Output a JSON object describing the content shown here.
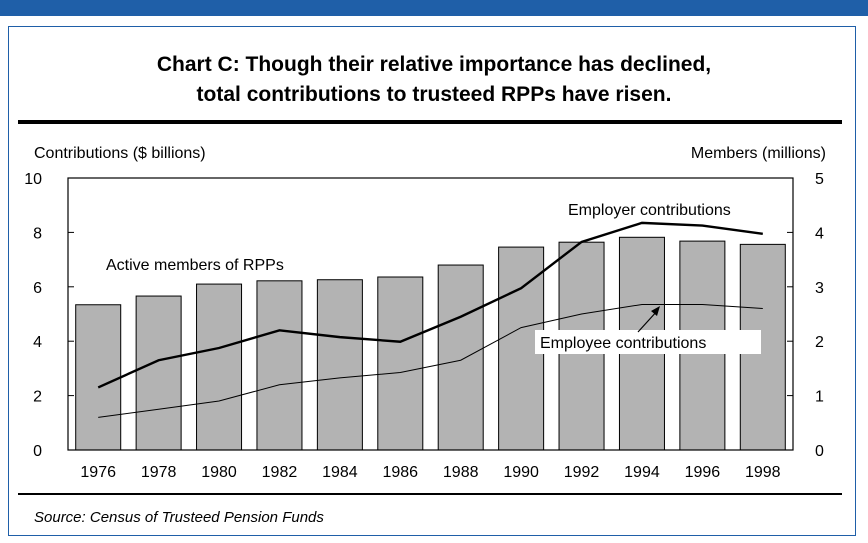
{
  "title_line1": "Chart C: Though their relative importance has declined,",
  "title_line2": "total contributions to trusteed RPPs have risen.",
  "source": "Source: Census of Trusteed Pension Funds",
  "colors": {
    "frame": "#1f5fa8",
    "bars": "#b3b3b3"
  },
  "chart_data": {
    "type": "bar",
    "categories": [
      "1976",
      "1978",
      "1980",
      "1982",
      "1984",
      "1986",
      "1988",
      "1990",
      "1992",
      "1994",
      "1996",
      "1998"
    ],
    "ylabel": "Contributions ($ billions)",
    "y2label": "Members (millions)",
    "ylim": [
      0,
      10
    ],
    "y2lim": [
      0,
      5
    ],
    "yticks": [
      0,
      2,
      4,
      6,
      8,
      10
    ],
    "y2ticks": [
      0,
      1,
      2,
      3,
      4,
      5
    ],
    "grid": false,
    "series": [
      {
        "name": "Active members of RPPs",
        "type": "bar",
        "axis": "right",
        "values": [
          2.67,
          2.83,
          3.05,
          3.11,
          3.13,
          3.18,
          3.4,
          3.73,
          3.82,
          3.91,
          3.84,
          3.78
        ]
      },
      {
        "name": "Employer contributions",
        "type": "line",
        "axis": "left",
        "values": [
          2.3,
          3.3,
          3.75,
          4.4,
          4.15,
          3.98,
          4.9,
          5.95,
          7.65,
          8.35,
          8.25,
          7.95
        ]
      },
      {
        "name": "Employee contributions",
        "type": "line",
        "axis": "left",
        "values": [
          1.2,
          1.5,
          1.8,
          2.4,
          2.65,
          2.85,
          3.3,
          4.5,
          5.0,
          5.35,
          5.35,
          5.2
        ]
      }
    ]
  }
}
